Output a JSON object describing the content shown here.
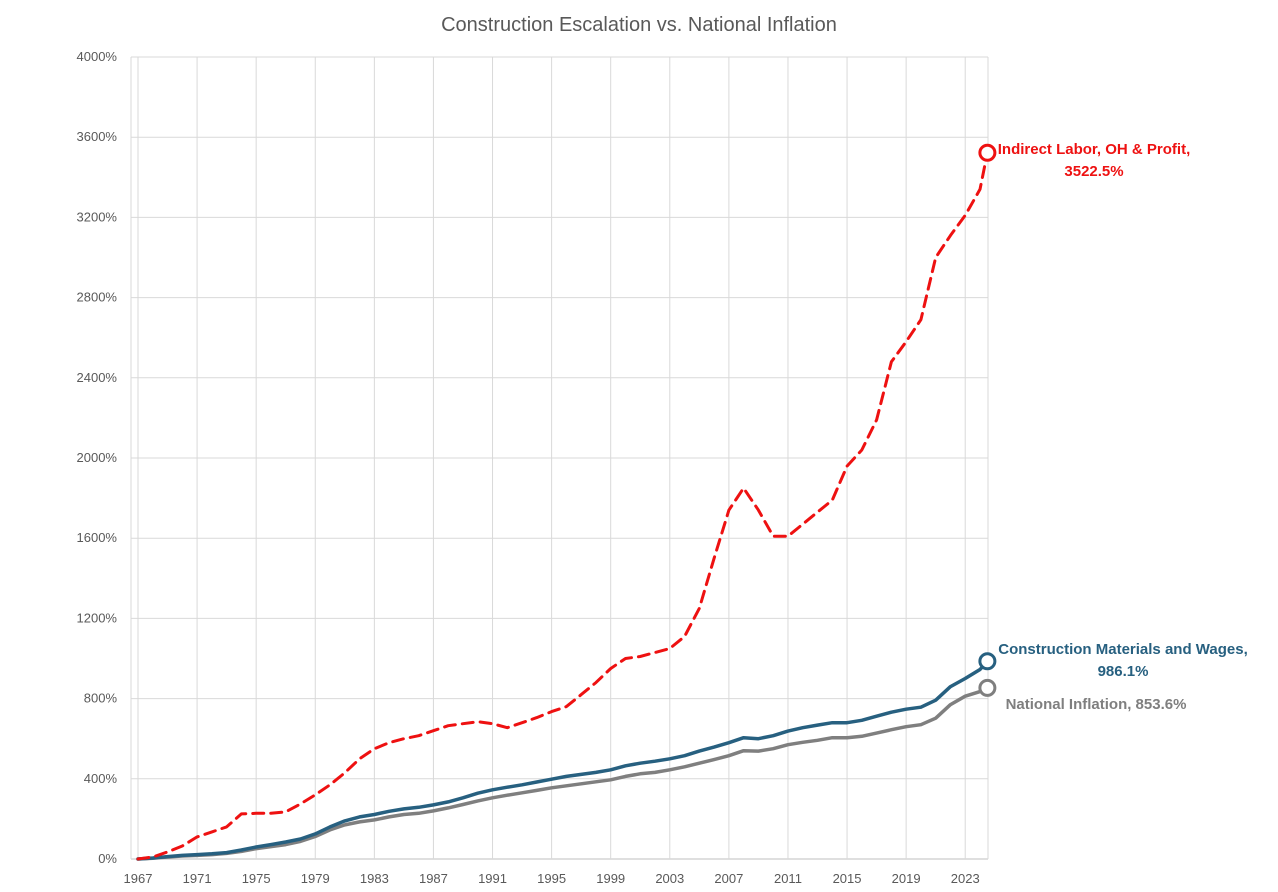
{
  "chart_data": {
    "type": "line",
    "title": "Construction Escalation vs. National Inflation",
    "xlabel": "",
    "ylabel": "",
    "xlim": [
      1967,
      2024
    ],
    "ylim": [
      0,
      4000
    ],
    "y_ticks": [
      0,
      400,
      800,
      1200,
      1600,
      2000,
      2400,
      2800,
      3200,
      3600,
      4000
    ],
    "y_tick_labels": [
      "0%",
      "400%",
      "800%",
      "1200%",
      "1600%",
      "2000%",
      "2400%",
      "2800%",
      "3200%",
      "3600%",
      "4000%"
    ],
    "x_ticks": [
      1967,
      1971,
      1975,
      1979,
      1983,
      1987,
      1991,
      1995,
      1999,
      2003,
      2007,
      2011,
      2015,
      2019,
      2023
    ],
    "x_tick_labels": [
      "1967",
      "1971",
      "1975",
      "1979",
      "1983",
      "1987",
      "1991",
      "1995",
      "1999",
      "2003",
      "2007",
      "2011",
      "2015",
      "2019",
      "2023"
    ],
    "grid": true,
    "legend": "none",
    "x": [
      1967,
      1968,
      1969,
      1970,
      1971,
      1972,
      1973,
      1974,
      1975,
      1976,
      1977,
      1978,
      1979,
      1980,
      1981,
      1982,
      1983,
      1984,
      1985,
      1986,
      1987,
      1988,
      1989,
      1990,
      1991,
      1992,
      1993,
      1994,
      1995,
      1996,
      1997,
      1998,
      1999,
      2000,
      2001,
      2002,
      2003,
      2004,
      2005,
      2006,
      2007,
      2008,
      2009,
      2010,
      2011,
      2012,
      2013,
      2014,
      2015,
      2016,
      2017,
      2018,
      2019,
      2020,
      2021,
      2022,
      2023,
      2024
    ],
    "series": [
      {
        "name": "Indirect Labor, OH & Profit",
        "color": "#ee1111",
        "style": "dashed",
        "values": [
          0,
          10,
          35,
          65,
          110,
          135,
          160,
          225,
          228,
          228,
          235,
          275,
          320,
          370,
          430,
          500,
          550,
          580,
          600,
          615,
          640,
          665,
          675,
          685,
          675,
          655,
          680,
          705,
          735,
          760,
          820,
          880,
          950,
          1000,
          1010,
          1030,
          1050,
          1110,
          1250,
          1500,
          1740,
          1850,
          1740,
          1610,
          1610,
          1670,
          1730,
          1790,
          1960,
          2040,
          2190,
          2480,
          2580,
          2690,
          3000,
          3110,
          3210,
          3340
        ],
        "end_value": 3522.5,
        "end_label": "Indirect Labor, OH & Profit,",
        "end_value_label": "3522.5%"
      },
      {
        "name": "Construction Materials and Wages",
        "color": "#276080",
        "style": "solid",
        "values": [
          0,
          5,
          12,
          18,
          22,
          26,
          32,
          45,
          60,
          72,
          85,
          100,
          125,
          160,
          190,
          210,
          222,
          238,
          250,
          258,
          270,
          285,
          305,
          328,
          345,
          358,
          370,
          384,
          398,
          412,
          422,
          432,
          445,
          465,
          478,
          488,
          500,
          515,
          538,
          558,
          580,
          605,
          600,
          615,
          638,
          655,
          668,
          680,
          680,
          692,
          712,
          732,
          747,
          757,
          792,
          860,
          900,
          945
        ],
        "end_value": 986.1,
        "end_label": "Construction Materials and Wages,",
        "end_value_label": "986.1%"
      },
      {
        "name": "National Inflation",
        "color": "#7f7f7f",
        "style": "solid",
        "values": [
          0,
          4,
          10,
          15,
          18,
          22,
          28,
          38,
          52,
          62,
          72,
          88,
          112,
          145,
          170,
          185,
          195,
          210,
          222,
          228,
          240,
          255,
          272,
          290,
          305,
          318,
          330,
          342,
          355,
          365,
          375,
          385,
          395,
          412,
          425,
          432,
          445,
          460,
          478,
          496,
          515,
          540,
          538,
          550,
          570,
          582,
          592,
          605,
          605,
          612,
          628,
          645,
          660,
          670,
          702,
          770,
          812,
          835
        ],
        "end_value": 853.6,
        "end_label": "National Inflation, 853.6%",
        "end_value_label": ""
      }
    ]
  }
}
